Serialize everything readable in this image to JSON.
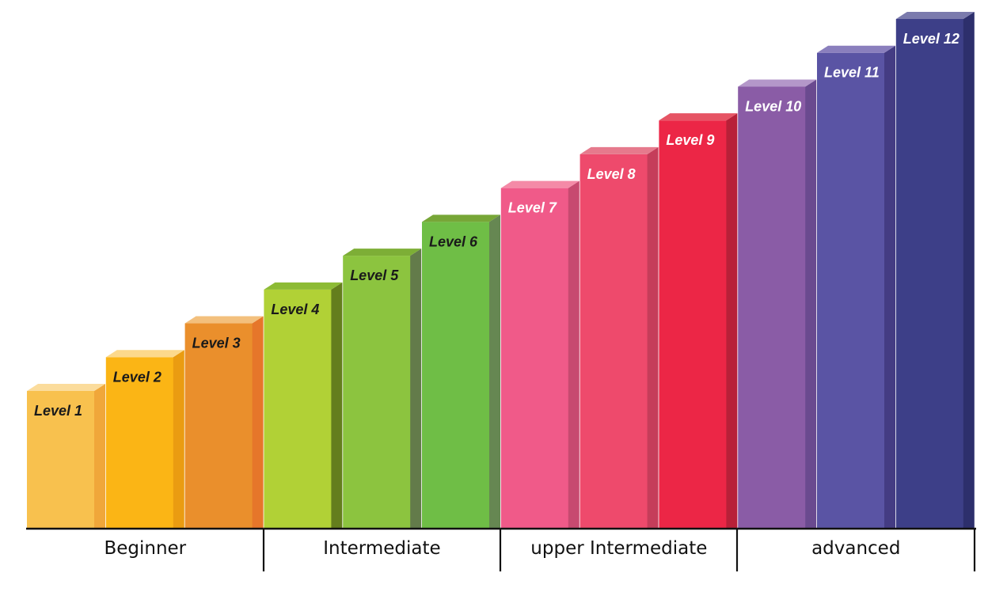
{
  "stairs": {
    "levels": [
      {
        "label": "Level 1",
        "height": 1,
        "front": "#f8c14e",
        "side": "#f0a73a",
        "top": "#fbdc9c",
        "text": "#1a1a1a"
      },
      {
        "label": "Level 2",
        "height": 2,
        "front": "#fbb515",
        "side": "#ea9c11",
        "top": "#fcd98c",
        "text": "#1a1a1a"
      },
      {
        "label": "Level 3",
        "height": 3,
        "front": "#ea8f2c",
        "side": "#e6762a",
        "top": "#f3c07d",
        "text": "#1a1a1a"
      },
      {
        "label": "Level 4",
        "height": 4,
        "front": "#b1d136",
        "side": "#647e1d",
        "top": "#8dbb35",
        "text": "#1a1a1a"
      },
      {
        "label": "Level 5",
        "height": 5,
        "front": "#8cc43f",
        "side": "#637b4a",
        "top": "#7dae36",
        "text": "#1a1a1a"
      },
      {
        "label": "Level 6",
        "height": 6,
        "front": "#6fbe46",
        "side": "#668752",
        "top": "#77a637",
        "text": "#1a1a1a"
      },
      {
        "label": "Level 7",
        "height": 7,
        "front": "#f05a89",
        "side": "#c74a70",
        "top": "#f48aa7",
        "text": "#ffffff"
      },
      {
        "label": "Level 8",
        "height": 8,
        "front": "#ee4a6c",
        "side": "#c53d5a",
        "top": "#e67a8d",
        "text": "#ffffff"
      },
      {
        "label": "Level 9",
        "height": 9,
        "front": "#ec2646",
        "side": "#b82038",
        "top": "#e65464",
        "text": "#ffffff"
      },
      {
        "label": "Level 10",
        "height": 10,
        "front": "#8a5ca6",
        "side": "#6a4a8f",
        "top": "#b497c9",
        "text": "#ffffff"
      },
      {
        "label": "Level 11",
        "height": 11,
        "front": "#5a54a4",
        "side": "#443c83",
        "top": "#8a7fbd",
        "text": "#ffffff"
      },
      {
        "label": "Level 12",
        "height": 12,
        "front": "#3d3f88",
        "side": "#2d2f6c",
        "top": "#7b7bad",
        "text": "#ffffff"
      }
    ],
    "groups": [
      {
        "label": "Beginner",
        "first_level": 1,
        "last_level": 3
      },
      {
        "label": "Intermediate",
        "first_level": 4,
        "last_level": 6
      },
      {
        "label": "upper Intermediate",
        "first_level": 7,
        "last_level": 9
      },
      {
        "label": "advanced",
        "first_level": 10,
        "last_level": 12
      }
    ]
  }
}
